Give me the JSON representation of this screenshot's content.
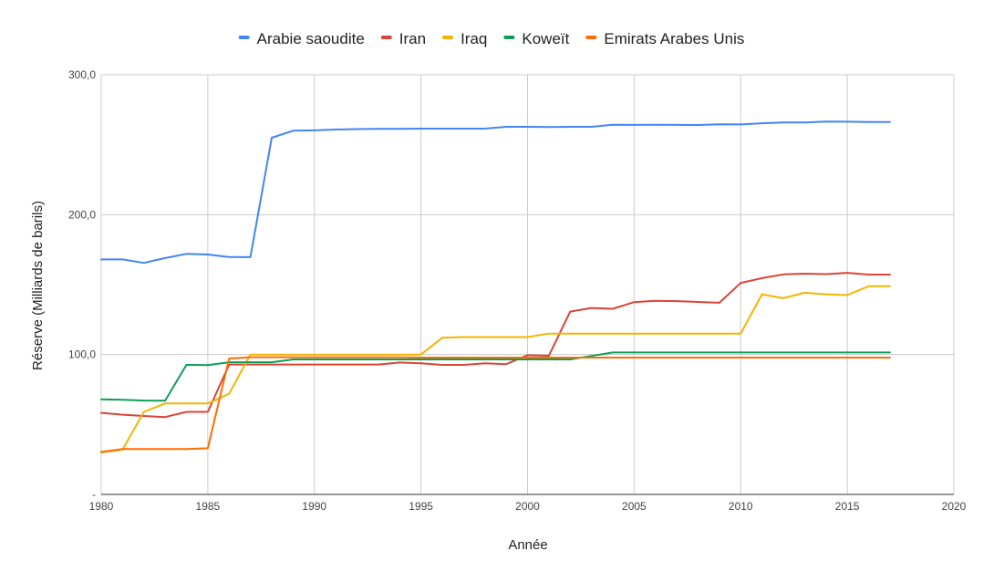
{
  "chart_data": {
    "type": "line",
    "title": "",
    "xlabel": "Année",
    "ylabel": "Réserve (Milliards de barils)",
    "xlim": [
      1980,
      2020
    ],
    "ylim": [
      0,
      300
    ],
    "x_ticks": [
      1980,
      1985,
      1990,
      1995,
      2000,
      2005,
      2010,
      2015,
      2020
    ],
    "x_tick_labels": [
      "1980",
      "1985",
      "1990",
      "1995",
      "2000",
      "2005",
      "2010",
      "2015",
      "2020"
    ],
    "y_ticks": [
      0,
      100,
      200,
      300
    ],
    "y_tick_labels": [
      "-",
      "100,0",
      "200,0",
      "300,0"
    ],
    "grid": true,
    "legend_position": "top",
    "x": [
      1980,
      1981,
      1982,
      1983,
      1984,
      1985,
      1986,
      1987,
      1988,
      1989,
      1990,
      1991,
      1992,
      1993,
      1994,
      1995,
      1996,
      1997,
      1998,
      1999,
      2000,
      2001,
      2002,
      2003,
      2004,
      2005,
      2006,
      2007,
      2008,
      2009,
      2010,
      2011,
      2012,
      2013,
      2014,
      2015,
      2016,
      2017
    ],
    "series": [
      {
        "name": "Arabie saoudite",
        "color": "#4285f4",
        "values": [
          168,
          168,
          165.5,
          169,
          172,
          171.5,
          169.7,
          169.6,
          255,
          260,
          260.3,
          260.9,
          261.2,
          261.4,
          261.4,
          261.5,
          261.5,
          261.5,
          261.5,
          262.8,
          262.8,
          262.7,
          262.8,
          262.8,
          264.3,
          264.2,
          264.3,
          264.2,
          264.1,
          264.6,
          264.5,
          265.4,
          265.9,
          265.9,
          266.6,
          266.5,
          266.2,
          266.3
        ]
      },
      {
        "name": "Iran",
        "color": "#db4437",
        "values": [
          58.3,
          57.0,
          56.1,
          55.3,
          59.0,
          59.0,
          92.9,
          92.9,
          92.9,
          92.9,
          92.9,
          92.9,
          92.9,
          92.9,
          94.3,
          93.7,
          92.6,
          92.6,
          93.7,
          93.1,
          99.5,
          99.1,
          130.7,
          133.3,
          132.7,
          137.5,
          138.4,
          138.2,
          137.6,
          137.0,
          151.2,
          154.6,
          157.3,
          157.8,
          157.5,
          158.4,
          157.2,
          157.2
        ]
      },
      {
        "name": "Iraq",
        "color": "#f4b400",
        "values": [
          30.0,
          32.0,
          59.0,
          65.0,
          65.0,
          65.0,
          72.0,
          100.0,
          100.0,
          100.0,
          100.0,
          100.0,
          100.0,
          100.0,
          100.0,
          100.0,
          112.0,
          112.5,
          112.5,
          112.5,
          112.5,
          115.0,
          115.0,
          115.0,
          115.0,
          115.0,
          115.0,
          115.0,
          115.0,
          115.0,
          115.0,
          143.1,
          140.3,
          144.2,
          143.1,
          142.5,
          148.8,
          148.8
        ]
      },
      {
        "name": "Koweït",
        "color": "#0f9d58",
        "values": [
          68.0,
          67.7,
          67.1,
          67.0,
          92.7,
          92.5,
          94.5,
          94.5,
          94.5,
          96.5,
          96.5,
          96.5,
          96.5,
          96.5,
          96.5,
          96.5,
          96.5,
          96.5,
          96.5,
          96.5,
          96.5,
          96.5,
          96.5,
          99.0,
          101.5,
          101.5,
          101.5,
          101.5,
          101.5,
          101.5,
          101.5,
          101.5,
          101.5,
          101.5,
          101.5,
          101.5,
          101.5,
          101.5
        ]
      },
      {
        "name": "Emirats Arabes Unis",
        "color": "#ff6d01",
        "values": [
          30.4,
          32.4,
          32.4,
          32.4,
          32.5,
          33.0,
          97.2,
          98.1,
          98.1,
          98.1,
          98.1,
          98.1,
          98.1,
          98.1,
          98.1,
          97.8,
          97.8,
          97.8,
          97.8,
          97.8,
          97.8,
          97.8,
          97.8,
          97.8,
          97.8,
          97.8,
          97.8,
          97.8,
          97.8,
          97.8,
          97.8,
          97.8,
          97.8,
          97.8,
          97.8,
          97.8,
          97.8,
          97.8
        ]
      }
    ]
  }
}
